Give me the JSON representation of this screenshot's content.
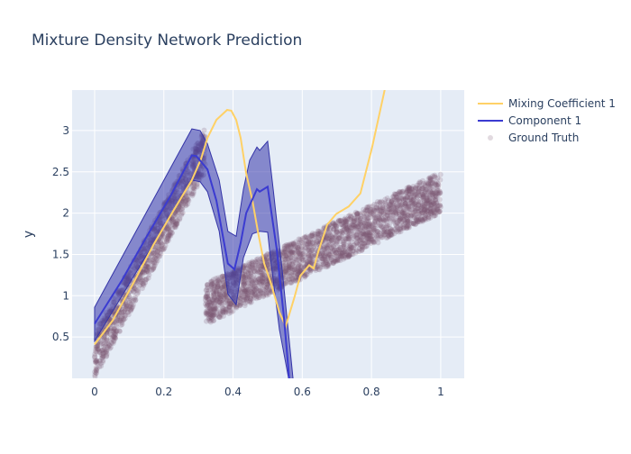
{
  "chart_data": {
    "type": "line",
    "title": "Mixture Density Network Prediction",
    "xlabel": "",
    "ylabel": "y",
    "xlim": [
      -0.065,
      1.068
    ],
    "ylim": [
      0,
      3.49
    ],
    "x_ticks": [
      0,
      0.2,
      0.4,
      0.6,
      0.8,
      1
    ],
    "x_tick_labels": [
      "0",
      "0.2",
      "0.4",
      "0.6",
      "0.8",
      "1"
    ],
    "y_ticks": [
      0.5,
      1,
      1.5,
      2,
      2.5,
      3
    ],
    "y_tick_labels": [
      "0.5",
      "1",
      "1.5",
      "2",
      "2.5",
      "3"
    ],
    "grid": true,
    "legend_placement": "right-top",
    "colors": {
      "mixing": "#ffd166",
      "component": "#3b3bd1",
      "component_band": "rgba(55,55,170,0.55)",
      "ground_truth": "rgba(125,85,115,0.22)",
      "plot_bg": "#e5ecf6"
    },
    "series": [
      {
        "name": "Mixing Coefficient 1",
        "x": [
          0,
          0.052,
          0.109,
          0.169,
          0.229,
          0.281,
          0.307,
          0.326,
          0.352,
          0.383,
          0.395,
          0.409,
          0.422,
          0.438,
          0.456,
          0.473,
          0.49,
          0.508,
          0.534,
          0.552,
          0.578,
          0.594,
          0.62,
          0.633,
          0.646,
          0.672,
          0.698,
          0.734,
          0.768,
          0.802,
          0.838,
          0.87
        ],
        "y": [
          0.41,
          0.7,
          1.13,
          1.61,
          2.04,
          2.4,
          2.65,
          2.91,
          3.13,
          3.25,
          3.24,
          3.13,
          2.91,
          2.48,
          2.15,
          1.75,
          1.39,
          1.17,
          0.8,
          0.63,
          0.99,
          1.24,
          1.37,
          1.33,
          1.53,
          1.86,
          1.99,
          2.08,
          2.24,
          2.8,
          3.49,
          4.0
        ]
      },
      {
        "name": "Component 1",
        "x": [
          0,
          0.078,
          0.151,
          0.221,
          0.281,
          0.294,
          0.326,
          0.352,
          0.385,
          0.404,
          0.422,
          0.438,
          0.469,
          0.477,
          0.5,
          0.526,
          0.547,
          0.562,
          0.575
        ],
        "y": [
          0.66,
          1.18,
          1.72,
          2.22,
          2.7,
          2.69,
          2.53,
          2.15,
          1.39,
          1.32,
          1.64,
          2.0,
          2.29,
          2.26,
          2.32,
          1.57,
          0.74,
          0.01,
          -0.7
        ],
        "upper": {
          "x": [
            0,
            0.281,
            0.305,
            0.326,
            0.36,
            0.385,
            0.409,
            0.43,
            0.448,
            0.469,
            0.477,
            0.5,
            0.516,
            0.542,
            0.573,
            0.585
          ],
          "y": [
            0.86,
            3.02,
            3.0,
            2.84,
            2.4,
            1.78,
            1.72,
            2.29,
            2.64,
            2.8,
            2.76,
            2.87,
            2.29,
            1.31,
            0.01,
            -0.6
          ]
        },
        "lower": {
          "x": [
            0,
            0.281,
            0.305,
            0.326,
            0.36,
            0.385,
            0.409,
            0.43,
            0.456,
            0.477,
            0.5,
            0.508,
            0.534,
            0.56,
            0.57
          ],
          "y": [
            0.45,
            2.4,
            2.38,
            2.26,
            1.78,
            1.02,
            0.89,
            1.46,
            1.75,
            1.78,
            1.77,
            1.46,
            0.59,
            0.01,
            -0.6
          ]
        }
      },
      {
        "name": "Ground Truth",
        "type": "scatter",
        "bands": [
          {
            "x": [
              0,
              0.32
            ],
            "lower": [
              0.0,
              2.5
            ],
            "upper": [
              0.55,
              3.05
            ]
          },
          {
            "x": [
              0.32,
              1.0
            ],
            "lower": [
              0.65,
              2.0
            ],
            "upper": [
              1.15,
              2.5
            ]
          }
        ]
      }
    ]
  }
}
